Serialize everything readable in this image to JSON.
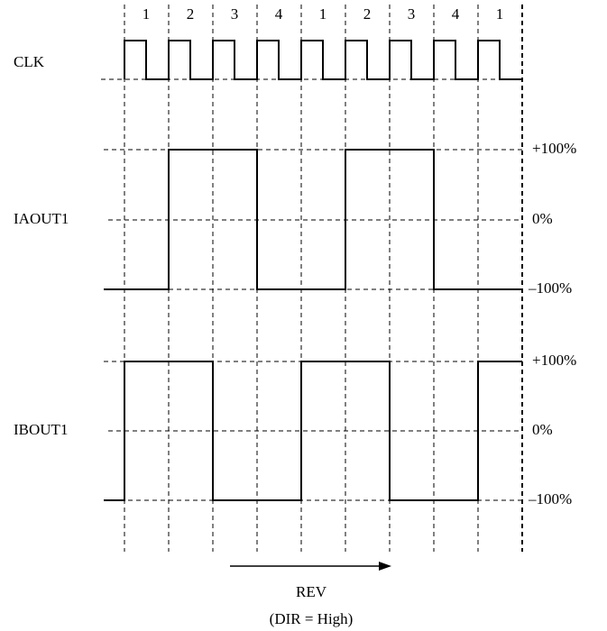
{
  "step_labels": [
    "1",
    "2",
    "3",
    "4",
    "1",
    "2",
    "3",
    "4",
    "1"
  ],
  "signals": [
    {
      "name": "CLK"
    },
    {
      "name": "IAOUT1",
      "levels": [
        "+100%",
        "0%",
        "–100%"
      ]
    },
    {
      "name": "IBOUT1",
      "levels": [
        "+100%",
        "0%",
        "–100%"
      ]
    }
  ],
  "direction": {
    "label": "REV",
    "condition": "(DIR = High)"
  }
}
